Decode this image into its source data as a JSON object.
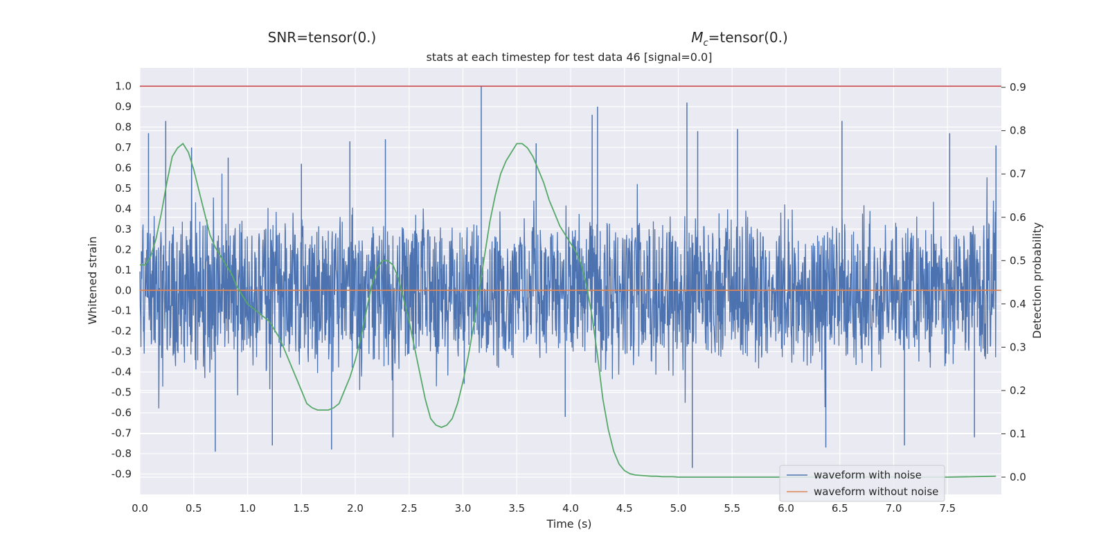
{
  "chart_data": {
    "type": "line",
    "top_labels": {
      "left": "SNR=tensor(0.)",
      "right_symbol": "M",
      "right_subscript": "c",
      "right_rest": "=tensor(0.)"
    },
    "title": "stats at each timestep for test data 46 [signal=0.0]",
    "xlabel": "Time (s)",
    "ylabel_left": "Whitened strain",
    "ylabel_right": "Detection probability",
    "xlim": [
      0.0,
      8.0
    ],
    "ylim_left": [
      -1.0,
      1.09
    ],
    "ylim_right": [
      -0.04,
      0.945
    ],
    "xticks": [
      "0.0",
      "0.5",
      "1.0",
      "1.5",
      "2.0",
      "2.5",
      "3.0",
      "3.5",
      "4.0",
      "4.5",
      "5.0",
      "5.5",
      "6.0",
      "6.5",
      "7.0",
      "7.5"
    ],
    "xtick_values": [
      0.0,
      0.5,
      1.0,
      1.5,
      2.0,
      2.5,
      3.0,
      3.5,
      4.0,
      4.5,
      5.0,
      5.5,
      6.0,
      6.5,
      7.0,
      7.5
    ],
    "yticks_left": [
      "1.0",
      "0.9",
      "0.8",
      "0.7",
      "0.6",
      "0.5",
      "0.4",
      "0.3",
      "0.2",
      "0.1",
      "0.0",
      "-0.1",
      "-0.2",
      "-0.3",
      "-0.4",
      "-0.5",
      "-0.6",
      "-0.7",
      "-0.8",
      "-0.9"
    ],
    "ytick_values_left": [
      1.0,
      0.9,
      0.8,
      0.7,
      0.6,
      0.5,
      0.4,
      0.3,
      0.2,
      0.1,
      0.0,
      -0.1,
      -0.2,
      -0.3,
      -0.4,
      -0.5,
      -0.6,
      -0.7,
      -0.8,
      -0.9
    ],
    "yticks_right": [
      "0.9",
      "0.8",
      "0.7",
      "0.6",
      "0.5",
      "0.4",
      "0.3",
      "0.2",
      "0.1",
      "0.0"
    ],
    "ytick_values_right": [
      0.9,
      0.8,
      0.7,
      0.6,
      0.5,
      0.4,
      0.3,
      0.2,
      0.1,
      0.0
    ],
    "grid": true,
    "legend": {
      "position": "lower-right"
    },
    "series": [
      {
        "name": "waveform with noise",
        "axis": "left",
        "color": "#4c72b0",
        "description": "dense noise trace, envelope roughly +/-0.4, sparse peaks",
        "peaks": [
          [
            0.08,
            0.77
          ],
          [
            0.24,
            0.83
          ],
          [
            0.48,
            0.7
          ],
          [
            0.7,
            -0.79
          ],
          [
            0.82,
            0.65
          ],
          [
            1.23,
            -0.76
          ],
          [
            1.5,
            0.62
          ],
          [
            1.78,
            -0.78
          ],
          [
            1.95,
            0.73
          ],
          [
            2.28,
            0.74
          ],
          [
            2.35,
            -0.72
          ],
          [
            3.17,
            1.0
          ],
          [
            3.68,
            0.72
          ],
          [
            3.95,
            -0.62
          ],
          [
            4.2,
            0.86
          ],
          [
            4.25,
            0.9
          ],
          [
            5.08,
            0.92
          ],
          [
            5.13,
            -0.87
          ],
          [
            5.18,
            0.78
          ],
          [
            5.55,
            0.79
          ],
          [
            6.37,
            -0.77
          ],
          [
            6.52,
            0.83
          ],
          [
            7.1,
            -0.76
          ],
          [
            7.52,
            0.77
          ],
          [
            7.75,
            -0.72
          ],
          [
            7.95,
            0.71
          ]
        ]
      },
      {
        "name": "waveform without noise",
        "axis": "left",
        "color": "#dd8452",
        "x": [
          0.0,
          8.0
        ],
        "y": [
          0.0,
          0.0
        ]
      },
      {
        "name": "",
        "axis": "right",
        "color": "#55a868",
        "x": [
          0.0,
          0.05,
          0.1,
          0.15,
          0.2,
          0.25,
          0.3,
          0.35,
          0.4,
          0.45,
          0.5,
          0.55,
          0.6,
          0.65,
          0.7,
          0.75,
          0.8,
          0.85,
          0.9,
          0.95,
          1.0,
          1.05,
          1.1,
          1.15,
          1.2,
          1.25,
          1.3,
          1.35,
          1.4,
          1.45,
          1.5,
          1.55,
          1.6,
          1.65,
          1.7,
          1.75,
          1.8,
          1.85,
          1.9,
          1.95,
          2.0,
          2.05,
          2.1,
          2.15,
          2.2,
          2.25,
          2.3,
          2.35,
          2.4,
          2.45,
          2.5,
          2.55,
          2.6,
          2.65,
          2.7,
          2.75,
          2.8,
          2.85,
          2.9,
          2.95,
          3.0,
          3.05,
          3.1,
          3.15,
          3.2,
          3.25,
          3.3,
          3.35,
          3.4,
          3.45,
          3.5,
          3.55,
          3.6,
          3.65,
          3.7,
          3.75,
          3.8,
          3.85,
          3.9,
          3.95,
          4.0,
          4.05,
          4.1,
          4.15,
          4.2,
          4.25,
          4.3,
          4.35,
          4.4,
          4.45,
          4.5,
          4.55,
          4.6,
          4.65,
          4.7,
          4.75,
          4.8,
          4.85,
          4.9,
          4.95,
          5.0,
          5.5,
          6.0,
          6.5,
          7.0,
          7.5,
          7.95
        ],
        "y": [
          0.49,
          0.49,
          0.51,
          0.55,
          0.61,
          0.68,
          0.74,
          0.76,
          0.77,
          0.75,
          0.71,
          0.66,
          0.61,
          0.56,
          0.53,
          0.51,
          0.49,
          0.47,
          0.44,
          0.42,
          0.4,
          0.39,
          0.38,
          0.37,
          0.36,
          0.34,
          0.32,
          0.29,
          0.26,
          0.23,
          0.2,
          0.17,
          0.16,
          0.155,
          0.155,
          0.155,
          0.16,
          0.17,
          0.2,
          0.23,
          0.27,
          0.32,
          0.38,
          0.44,
          0.48,
          0.5,
          0.5,
          0.49,
          0.46,
          0.41,
          0.36,
          0.3,
          0.24,
          0.18,
          0.135,
          0.12,
          0.115,
          0.12,
          0.135,
          0.17,
          0.22,
          0.28,
          0.35,
          0.43,
          0.51,
          0.59,
          0.65,
          0.7,
          0.73,
          0.75,
          0.77,
          0.77,
          0.76,
          0.74,
          0.71,
          0.68,
          0.64,
          0.61,
          0.58,
          0.56,
          0.54,
          0.52,
          0.49,
          0.44,
          0.37,
          0.28,
          0.18,
          0.11,
          0.06,
          0.03,
          0.015,
          0.008,
          0.005,
          0.004,
          0.003,
          0.002,
          0.002,
          0.001,
          0.001,
          0.001,
          0.0,
          0.0,
          0.0,
          0.0,
          0.0,
          0.0,
          0.002
        ]
      },
      {
        "name": "",
        "axis": "left",
        "color": "#c44e52",
        "x": [
          0.0,
          8.0
        ],
        "y": [
          1.0,
          1.0
        ]
      }
    ]
  }
}
